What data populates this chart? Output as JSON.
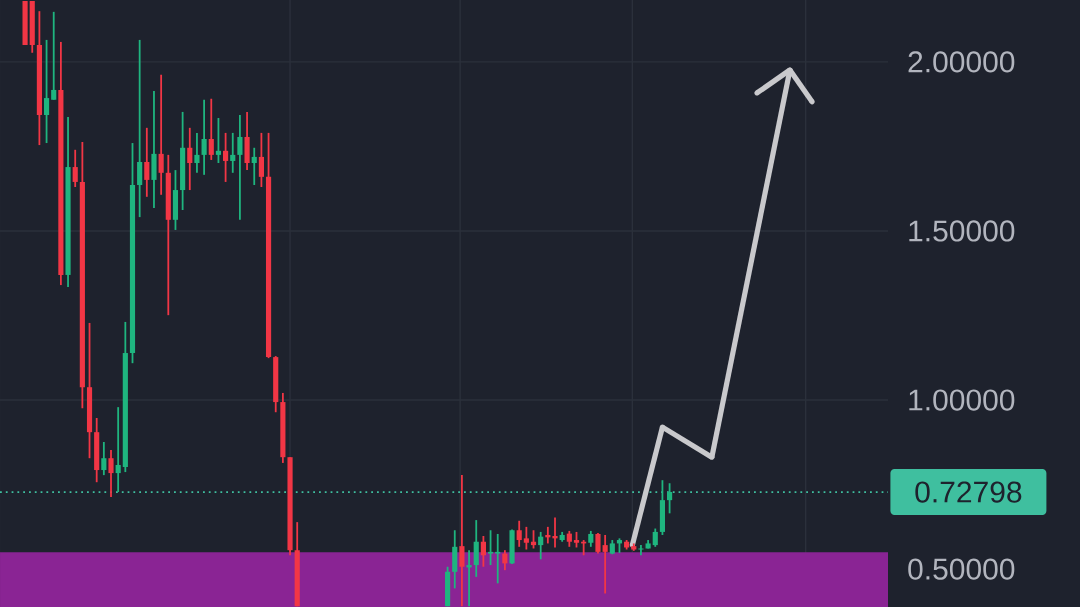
{
  "chart_data": {
    "type": "candlestick",
    "categories": [
      null,
      null,
      null,
      null,
      null,
      null,
      null,
      null,
      null,
      null,
      null,
      null,
      null,
      null,
      null,
      null,
      null,
      null,
      null,
      null,
      null,
      null,
      null,
      null,
      null,
      null,
      null,
      null,
      null,
      null,
      null,
      null,
      null,
      null,
      null,
      null,
      null,
      null,
      null,
      null,
      null,
      null,
      null,
      null,
      null,
      null,
      null,
      null,
      null,
      null,
      null,
      null,
      null,
      null,
      null,
      null,
      null,
      null,
      null,
      null,
      null,
      null,
      null,
      null,
      null,
      null,
      null,
      null,
      null,
      null,
      null,
      null,
      null,
      null,
      null,
      null,
      null,
      null,
      null,
      null,
      null,
      null,
      null,
      null,
      null,
      null,
      null,
      null,
      null,
      null,
      null,
      null,
      null,
      null,
      null,
      null,
      null,
      null,
      null,
      null,
      null,
      null,
      null,
      null,
      null,
      null,
      null,
      null,
      null,
      null,
      null,
      null,
      null,
      null,
      null,
      null,
      null,
      null,
      null,
      null,
      null,
      null,
      null,
      null
    ],
    "ohlc": [
      null,
      null,
      null,
      [
        2.18,
        2.18,
        2.05,
        2.05
      ],
      [
        2.18,
        2.18,
        2.027,
        2.05
      ],
      [
        2.05,
        2.15,
        1.754,
        1.843
      ],
      [
        1.843,
        2.065,
        1.76,
        1.893
      ],
      [
        1.888,
        2.148,
        1.888,
        1.917
      ],
      [
        1.917,
        2.059,
        1.34,
        1.37
      ],
      [
        1.37,
        1.837,
        1.334,
        1.689
      ],
      [
        1.689,
        1.74,
        1.63,
        1.645
      ],
      [
        1.645,
        1.763,
        0.976,
        1.038
      ],
      [
        1.038,
        1.228,
        0.828,
        0.905
      ],
      [
        0.905,
        0.947,
        0.757,
        0.793
      ],
      [
        0.793,
        0.876,
        0.778,
        0.828
      ],
      [
        0.828,
        0.852,
        0.713,
        0.784
      ],
      [
        0.784,
        0.979,
        0.728,
        0.808
      ],
      [
        0.802,
        1.231,
        0.787,
        1.139
      ],
      [
        1.139,
        1.76,
        1.109,
        1.636
      ],
      [
        1.636,
        2.065,
        1.541,
        1.704
      ],
      [
        1.704,
        1.805,
        1.601,
        1.651
      ],
      [
        1.651,
        1.914,
        1.568,
        1.728
      ],
      [
        1.728,
        1.962,
        1.607,
        1.672
      ],
      [
        1.672,
        1.725,
        1.251,
        1.533
      ],
      [
        1.533,
        1.68,
        1.503,
        1.621
      ],
      [
        1.621,
        1.852,
        1.562,
        1.746
      ],
      [
        1.746,
        1.805,
        1.621,
        1.701
      ],
      [
        1.701,
        1.79,
        1.672,
        1.725
      ],
      [
        1.725,
        1.888,
        1.666,
        1.772
      ],
      [
        1.772,
        1.891,
        1.71,
        1.725
      ],
      [
        1.725,
        1.834,
        1.701,
        1.737
      ],
      [
        1.737,
        1.79,
        1.645,
        1.707
      ],
      [
        1.707,
        1.79,
        1.672,
        1.725
      ],
      [
        1.725,
        1.843,
        1.533,
        1.778
      ],
      [
        1.778,
        1.852,
        1.68,
        1.701
      ],
      [
        1.701,
        1.746,
        1.636,
        1.719
      ],
      [
        1.719,
        1.79,
        1.63,
        1.66
      ],
      [
        1.66,
        1.79,
        1.124,
        1.127
      ],
      [
        1.127,
        1.13,
        0.964,
        0.994
      ],
      [
        0.994,
        1.021,
        0.814,
        0.831
      ],
      [
        0.831,
        0.831,
        0.541,
        0.556
      ],
      [
        0.556,
        0.639,
        0.39,
        0.39
      ],
      null,
      null,
      null,
      null,
      null,
      null,
      null,
      null,
      null,
      null,
      null,
      null,
      null,
      null,
      null,
      null,
      null,
      null,
      null,
      null,
      [
        0.39,
        0.507,
        0.39,
        0.492
      ],
      [
        0.492,
        0.615,
        0.443,
        0.566
      ],
      [
        0.568,
        0.778,
        0.39,
        0.507
      ],
      [
        0.505,
        0.556,
        0.39,
        0.512
      ],
      [
        0.512,
        0.645,
        0.477,
        0.581
      ],
      [
        0.581,
        0.598,
        0.507,
        0.541
      ],
      [
        0.546,
        0.615,
        0.512,
        0.551
      ],
      [
        0.546,
        0.604,
        0.458,
        0.551
      ],
      [
        0.546,
        0.556,
        0.497,
        0.517
      ],
      [
        0.517,
        0.617,
        0.515,
        0.615
      ],
      [
        0.615,
        0.643,
        0.566,
        0.586
      ],
      [
        0.591,
        0.625,
        0.558,
        0.578
      ],
      [
        0.581,
        0.615,
        0.561,
        0.571
      ],
      [
        0.571,
        0.61,
        0.529,
        0.596
      ],
      [
        0.601,
        0.625,
        0.576,
        0.594
      ],
      [
        0.598,
        0.653,
        0.564,
        0.591
      ],
      [
        0.586,
        0.61,
        0.581,
        0.601
      ],
      [
        0.605,
        0.613,
        0.566,
        0.581
      ],
      [
        0.586,
        0.61,
        0.564,
        0.578
      ],
      [
        0.581,
        0.586,
        0.541,
        0.576
      ],
      [
        0.578,
        0.613,
        0.566,
        0.604
      ],
      [
        0.604,
        0.607,
        0.546,
        0.551
      ],
      [
        0.571,
        0.601,
        0.428,
        0.551
      ],
      [
        0.546,
        0.586,
        0.544,
        0.576
      ],
      [
        0.576,
        0.591,
        0.548,
        0.586
      ],
      [
        0.581,
        0.586,
        0.558,
        0.564
      ],
      [
        0.568,
        0.576,
        0.554,
        0.558
      ],
      [
        0.558,
        0.571,
        0.541,
        0.561
      ],
      [
        0.561,
        0.586,
        0.561,
        0.576
      ],
      [
        0.571,
        0.62,
        0.566,
        0.61
      ],
      [
        0.61,
        0.763,
        0.601,
        0.704
      ],
      [
        0.704,
        0.754,
        0.665,
        0.728
      ],
      null,
      null,
      null,
      null,
      null,
      null,
      null,
      null,
      null,
      null,
      null,
      null,
      null,
      null,
      null,
      null,
      null,
      null,
      null,
      null,
      null,
      null,
      null,
      null,
      null,
      null,
      null,
      null,
      null,
      null
    ],
    "ylim": [
      0.388,
      2.183
    ],
    "yticks": [
      {
        "value": 0.5,
        "label": "0.50000"
      },
      {
        "value": 1.0,
        "label": "1.00000"
      },
      {
        "value": 1.5,
        "label": "1.50000"
      },
      {
        "value": 2.0,
        "label": "2.00000"
      }
    ],
    "grid": true,
    "ref_lines": [
      {
        "axis": "y",
        "value": 0.72798,
        "label": "0.72798",
        "color": "#3fbf9f",
        "line_style": "dotted"
      }
    ],
    "bands": [
      {
        "axis": "y",
        "from": 0.388,
        "to": 0.55,
        "color": "#8a2494"
      }
    ]
  }
}
